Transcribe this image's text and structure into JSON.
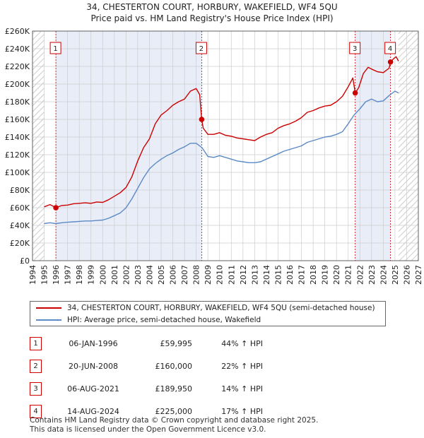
{
  "title_line1": "34, CHESTERTON COURT, HORBURY, WAKEFIELD, WF4 5QU",
  "title_line2": "Price paid vs. HM Land Registry's House Price Index (HPI)",
  "colors": {
    "property": "#cc0000",
    "hpi": "#5b8ac6",
    "shade": "#e8edf8",
    "grid": "#cccccc",
    "marker": "#cc0000"
  },
  "legend": {
    "property_label": "34, CHESTERTON COURT, HORBURY, WAKEFIELD, WF4 5QU (semi-detached house)",
    "hpi_label": "HPI: Average price, semi-detached house, Wakefield"
  },
  "sales": [
    {
      "num": "1",
      "date": "06-JAN-1996",
      "price": "£59,995",
      "hpi": "44% ↑ HPI"
    },
    {
      "num": "2",
      "date": "20-JUN-2008",
      "price": "£160,000",
      "hpi": "22% ↑ HPI"
    },
    {
      "num": "3",
      "date": "06-AUG-2021",
      "price": "£189,950",
      "hpi": "14% ↑ HPI"
    },
    {
      "num": "4",
      "date": "14-AUG-2024",
      "price": "£225,000",
      "hpi": "17% ↑ HPI"
    }
  ],
  "footer_line1": "Contains HM Land Registry data © Crown copyright and database right 2025.",
  "footer_line2": "This data is licensed under the Open Government Licence v3.0.",
  "chart_data": {
    "type": "line",
    "title": "34, CHESTERTON COURT, HORBURY, WAKEFIELD, WF4 5QU — Price paid vs. HM Land Registry's House Price Index (HPI)",
    "xlim": [
      1994,
      2027
    ],
    "ylim": [
      0,
      260000
    ],
    "x_ticks": [
      1994,
      1995,
      1996,
      1997,
      1998,
      1999,
      2000,
      2001,
      2002,
      2003,
      2004,
      2005,
      2006,
      2007,
      2008,
      2009,
      2010,
      2011,
      2012,
      2013,
      2014,
      2015,
      2016,
      2017,
      2018,
      2019,
      2020,
      2021,
      2022,
      2023,
      2024,
      2025,
      2026,
      2027
    ],
    "y_ticks": [
      0,
      20000,
      40000,
      60000,
      80000,
      100000,
      120000,
      140000,
      160000,
      180000,
      200000,
      220000,
      240000,
      260000
    ],
    "y_tick_labels": [
      "£0",
      "£20K",
      "£40K",
      "£60K",
      "£80K",
      "£100K",
      "£120K",
      "£140K",
      "£160K",
      "£180K",
      "£200K",
      "£220K",
      "£240K",
      "£260K"
    ],
    "shaded_periods": [
      [
        1996.0,
        2008.47
      ],
      [
        2021.6,
        2024.62
      ]
    ],
    "hatched_before": 1995.0,
    "hatched_after": 2025.3,
    "series": [
      {
        "name": "34, CHESTERTON COURT, HORBURY, WAKEFIELD, WF4 5QU (semi-detached house)",
        "x": [
          1995.0,
          1995.5,
          1996.0,
          1996.5,
          1997.0,
          1997.5,
          1998.0,
          1998.5,
          1999.0,
          1999.5,
          2000.0,
          2000.5,
          2001.0,
          2001.5,
          2002.0,
          2002.5,
          2003.0,
          2003.5,
          2004.0,
          2004.5,
          2005.0,
          2005.5,
          2006.0,
          2006.5,
          2007.0,
          2007.5,
          2008.0,
          2008.3,
          2008.47,
          2008.6,
          2009.0,
          2009.5,
          2010.0,
          2010.5,
          2011.0,
          2011.5,
          2012.0,
          2012.5,
          2013.0,
          2013.5,
          2014.0,
          2014.5,
          2015.0,
          2015.5,
          2016.0,
          2016.5,
          2017.0,
          2017.5,
          2018.0,
          2018.5,
          2019.0,
          2019.5,
          2020.0,
          2020.5,
          2021.0,
          2021.4,
          2021.6,
          2021.9,
          2022.3,
          2022.7,
          2023.0,
          2023.5,
          2024.0,
          2024.5,
          2024.62,
          2024.9,
          2025.1,
          2025.3
        ],
        "y": [
          61000,
          63500,
          59995,
          62500,
          63000,
          64500,
          65000,
          65500,
          65000,
          66500,
          66000,
          69000,
          73000,
          77000,
          83000,
          95000,
          113000,
          128000,
          138000,
          155000,
          165000,
          170000,
          176000,
          180000,
          183000,
          192000,
          195000,
          188000,
          160000,
          150000,
          143000,
          143000,
          145000,
          142000,
          141000,
          139000,
          138000,
          137000,
          136000,
          140000,
          143000,
          145000,
          150000,
          153000,
          155000,
          158000,
          162000,
          168000,
          170000,
          173000,
          175000,
          176000,
          180000,
          186000,
          197000,
          207000,
          189950,
          196000,
          212000,
          219000,
          217000,
          214000,
          213000,
          218000,
          225000,
          229000,
          231000,
          226000
        ],
        "color": "#cc0000"
      },
      {
        "name": "HPI: Average price, semi-detached house, Wakefield",
        "x": [
          1995.0,
          1995.5,
          1996.0,
          1996.5,
          1997.0,
          1997.5,
          1998.0,
          1998.5,
          1999.0,
          1999.5,
          2000.0,
          2000.5,
          2001.0,
          2001.5,
          2002.0,
          2002.5,
          2003.0,
          2003.5,
          2004.0,
          2004.5,
          2005.0,
          2005.5,
          2006.0,
          2006.5,
          2007.0,
          2007.5,
          2008.0,
          2008.5,
          2009.0,
          2009.5,
          2010.0,
          2010.5,
          2011.0,
          2011.5,
          2012.0,
          2012.5,
          2013.0,
          2013.5,
          2014.0,
          2014.5,
          2015.0,
          2015.5,
          2016.0,
          2016.5,
          2017.0,
          2017.5,
          2018.0,
          2018.5,
          2019.0,
          2019.5,
          2020.0,
          2020.5,
          2021.0,
          2021.5,
          2022.0,
          2022.5,
          2023.0,
          2023.5,
          2024.0,
          2024.5,
          2025.0,
          2025.3
        ],
        "y": [
          42000,
          43000,
          42000,
          43000,
          43500,
          44000,
          44500,
          45000,
          45000,
          45500,
          46000,
          48000,
          51000,
          54000,
          60000,
          70000,
          82000,
          94000,
          104000,
          110000,
          115000,
          119000,
          122000,
          126000,
          129000,
          133000,
          133000,
          128000,
          118000,
          117000,
          119000,
          117000,
          115000,
          113000,
          112000,
          111000,
          111000,
          112000,
          115000,
          118000,
          121000,
          124000,
          126000,
          128000,
          130000,
          134000,
          136000,
          138000,
          140000,
          141000,
          143000,
          146000,
          155000,
          165000,
          172000,
          180000,
          183000,
          180000,
          181000,
          187000,
          192000,
          190000
        ],
        "color": "#5b8ac6"
      }
    ],
    "markers": [
      {
        "label": "1",
        "x": 1996.0,
        "y": 59995,
        "line_x": 1996.0
      },
      {
        "label": "2",
        "x": 2008.47,
        "y": 160000,
        "line_x": 2008.47
      },
      {
        "label": "3",
        "x": 2021.6,
        "y": 189950,
        "line_x": 2021.6
      },
      {
        "label": "4",
        "x": 2024.62,
        "y": 225000,
        "line_x": 2024.62
      }
    ]
  }
}
